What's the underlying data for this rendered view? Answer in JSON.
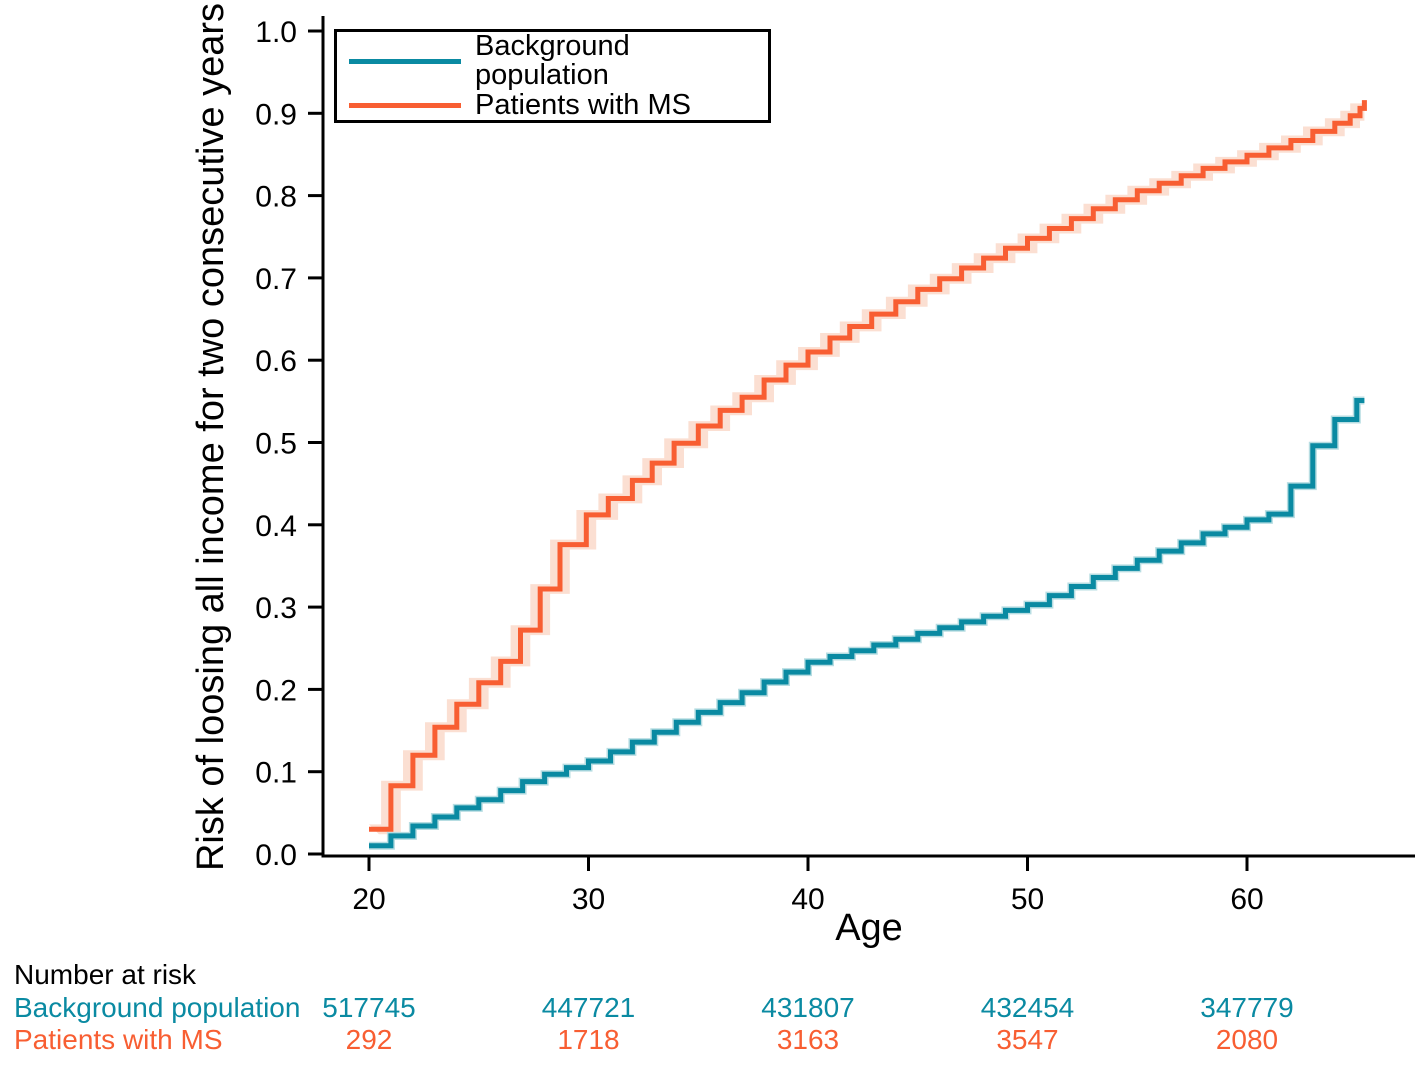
{
  "figure": {
    "background": "#ffffff",
    "text_color": "#000000",
    "axis_color": "#000000"
  },
  "chart_data": {
    "type": "line",
    "style": "step",
    "title": "",
    "xlabel": "Age",
    "ylabel": "Risk of loosing all income for two consecutive years",
    "xlim": [
      17.9,
      67.7
    ],
    "ylim": [
      0,
      1.0
    ],
    "grid": false,
    "legend_position": "top-left",
    "xticks": [
      20,
      30,
      40,
      50,
      60
    ],
    "xtick_labels": [
      "20",
      "30",
      "40",
      "50",
      "60"
    ],
    "yticks": [
      0.0,
      0.1,
      0.2,
      0.3,
      0.4,
      0.5,
      0.6,
      0.7,
      0.8,
      0.9,
      1.0
    ],
    "ytick_labels": [
      "0.0",
      "0.1",
      "0.2",
      "0.3",
      "0.4",
      "0.5",
      "0.6",
      "0.7",
      "0.8",
      "0.9",
      "1.0"
    ],
    "series": [
      {
        "name": "Background population",
        "color": "#0a8aa2",
        "ci_halo_color": "#b7dde2",
        "x": [
          20,
          21,
          22,
          23,
          24,
          25,
          26,
          27,
          28,
          29,
          30,
          31,
          32,
          33,
          34,
          35,
          36,
          37,
          38,
          39,
          40,
          41,
          42,
          43,
          44,
          45,
          46,
          47,
          48,
          49,
          50,
          51,
          52,
          53,
          54,
          55,
          56,
          57,
          58,
          59,
          60,
          61,
          62,
          63,
          64,
          65,
          65.35
        ],
        "y": [
          0.01,
          0.022,
          0.034,
          0.045,
          0.056,
          0.066,
          0.077,
          0.088,
          0.097,
          0.105,
          0.113,
          0.124,
          0.136,
          0.148,
          0.16,
          0.172,
          0.184,
          0.196,
          0.209,
          0.221,
          0.233,
          0.24,
          0.247,
          0.254,
          0.261,
          0.268,
          0.275,
          0.282,
          0.289,
          0.296,
          0.303,
          0.314,
          0.325,
          0.336,
          0.347,
          0.357,
          0.368,
          0.378,
          0.389,
          0.397,
          0.406,
          0.413,
          0.447,
          0.496,
          0.528,
          0.551,
          0.551
        ]
      },
      {
        "name": "Patients with MS",
        "color": "#f85e32",
        "ci_band_color": "#fbdfd2",
        "ci_shift_years": 0.45,
        "ci_pad": 0.006,
        "x": [
          20,
          21,
          22,
          23,
          24,
          25,
          26,
          26.9,
          27.8,
          28.7,
          29.9,
          30.9,
          32,
          32.9,
          33.9,
          35,
          36,
          37,
          38,
          39,
          40,
          41,
          41.9,
          42.9,
          44,
          45,
          46,
          47,
          48,
          49,
          50,
          51,
          52,
          53,
          54,
          55,
          56,
          57,
          58,
          59,
          60,
          61,
          62,
          63,
          64,
          64.7,
          65.15,
          65.35
        ],
        "y": [
          0.03,
          0.083,
          0.12,
          0.154,
          0.182,
          0.208,
          0.234,
          0.272,
          0.322,
          0.376,
          0.412,
          0.432,
          0.454,
          0.475,
          0.499,
          0.52,
          0.539,
          0.555,
          0.576,
          0.594,
          0.61,
          0.627,
          0.641,
          0.656,
          0.671,
          0.686,
          0.699,
          0.712,
          0.724,
          0.736,
          0.748,
          0.76,
          0.772,
          0.784,
          0.795,
          0.806,
          0.815,
          0.824,
          0.833,
          0.841,
          0.849,
          0.858,
          0.867,
          0.878,
          0.888,
          0.897,
          0.906,
          0.916
        ]
      }
    ]
  },
  "risk_table": {
    "title": "Number at risk",
    "ages": [
      20,
      30,
      40,
      50,
      60
    ],
    "rows": [
      {
        "label": "Background population",
        "color": "#0a8aa2",
        "values": [
          "517745",
          "447721",
          "431807",
          "432454",
          "347779"
        ]
      },
      {
        "label": "Patients with MS",
        "color": "#f85e32",
        "values": [
          "292",
          "1718",
          "3163",
          "3547",
          "2080"
        ]
      }
    ]
  }
}
